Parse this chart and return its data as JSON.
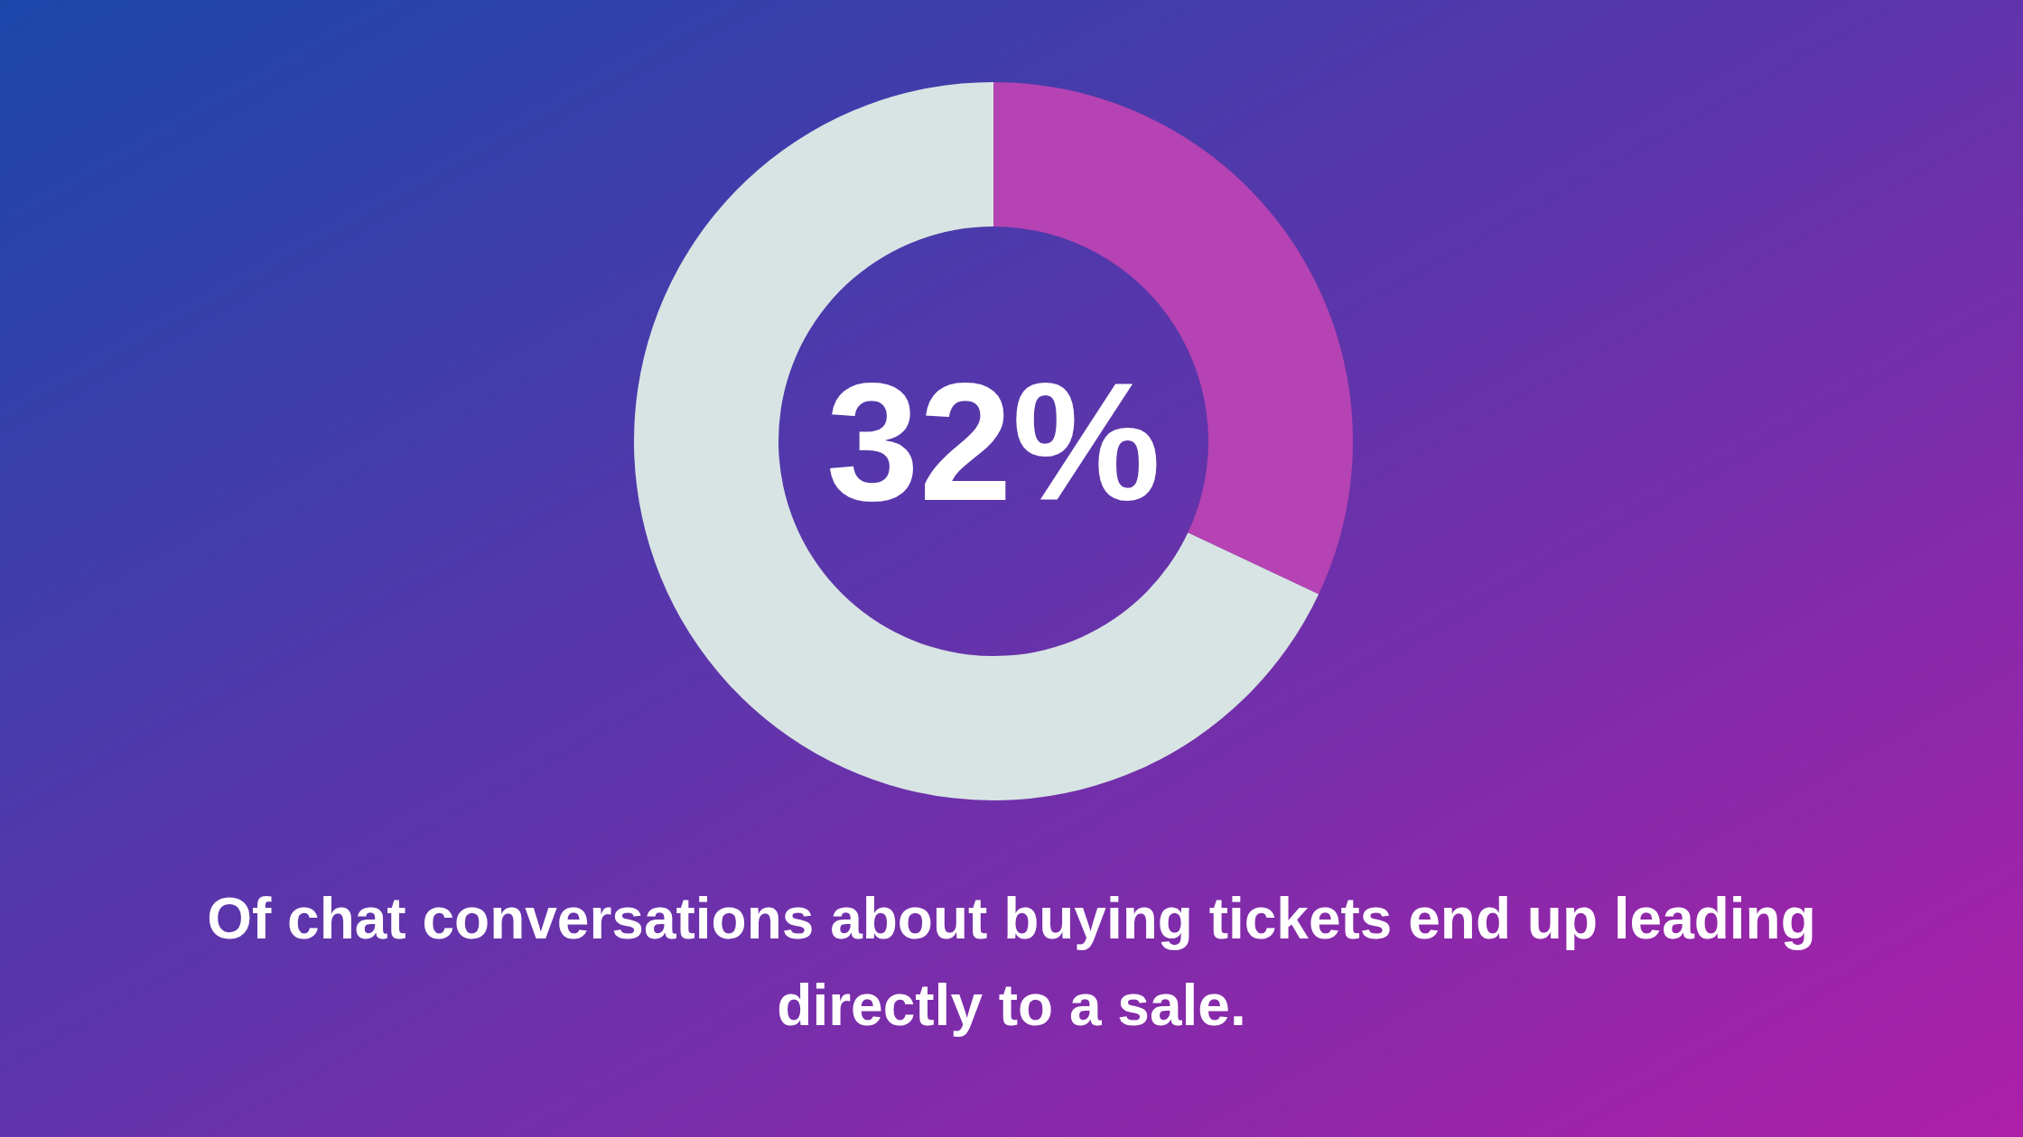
{
  "chart_data": {
    "type": "donut",
    "categories": [
      null,
      null
    ],
    "values": [
      32,
      68
    ],
    "colors": [
      "#b543b3",
      "#d8e4e3"
    ],
    "legend": false,
    "annotations": [
      "32%",
      "Of chat conversations about buying tickets end up leading directly to a sale."
    ]
  }
}
